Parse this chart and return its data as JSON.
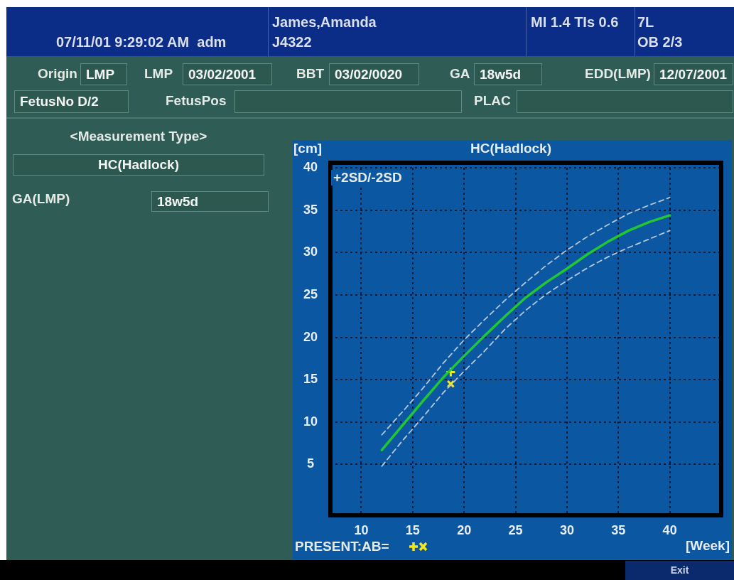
{
  "chart_data": {
    "type": "line",
    "title": "HC(Hadlock)",
    "xlabel": "[Week]",
    "ylabel": "[cm]",
    "annotations": [
      "07/11/01 9:29:02 AM  adm",
      "James,Amanda",
      "J4322",
      "MI 1.4 TIs 0.6",
      "7L",
      "OB 2/3",
      "Origin",
      "LMP",
      "LMP",
      "03/02/2001",
      "BBT",
      "03/02/0020",
      "GA",
      "18w5d",
      "EDD(LMP)",
      "12/07/2001",
      "FetusNo D/2",
      "FetusPos",
      "PLAC",
      "<Measurement Type>",
      "HC(Hadlock)",
      "GA(LMP)",
      "18w5d",
      "+2SD/-2SD",
      "PRESENT:AB=",
      "Exit"
    ],
    "xlim": [
      7,
      45
    ],
    "xticks": [
      10,
      15,
      20,
      25,
      30,
      35,
      40
    ],
    "ylim": [
      -1,
      40.6
    ],
    "yticks": [
      5,
      10,
      15,
      20,
      25,
      30,
      35,
      40
    ],
    "grid": true,
    "series": [
      {
        "color": "#22c832",
        "line_style": "solid",
        "marker": "none",
        "x": [
          12,
          14,
          16,
          18,
          20,
          22,
          24,
          26,
          28,
          30,
          32,
          34,
          36,
          38,
          40
        ],
        "values": [
          6.7,
          9.6,
          12.5,
          15.3,
          17.8,
          20.2,
          22.5,
          24.7,
          26.5,
          28.1,
          29.8,
          31.3,
          32.6,
          33.6,
          34.4
        ]
      },
      {
        "color": "#b4c8dc",
        "line_style": "dashed",
        "marker": "none",
        "x": [
          12,
          14,
          16,
          18,
          20,
          22,
          24,
          26,
          28,
          30,
          32,
          34,
          36,
          38,
          40
        ],
        "values": [
          8.5,
          11.2,
          14.0,
          17.0,
          19.7,
          22.1,
          24.4,
          26.5,
          28.5,
          30.3,
          31.9,
          33.3,
          34.6,
          35.6,
          36.5
        ]
      },
      {
        "color": "#b4c8dc",
        "line_style": "dashed",
        "marker": "none",
        "x": [
          12,
          14,
          16,
          18,
          20,
          22,
          24,
          26,
          28,
          30,
          32,
          34,
          36,
          38,
          40
        ],
        "values": [
          4.8,
          7.8,
          10.6,
          13.5,
          16.0,
          18.4,
          21.0,
          23.2,
          25.1,
          26.7,
          28.2,
          29.5,
          30.6,
          31.6,
          32.6
        ]
      },
      {
        "type": "scatter",
        "color": "#f5e71c",
        "marker": "cross",
        "x": [
          18.7
        ],
        "values": [
          15.9
        ]
      },
      {
        "type": "scatter",
        "color": "#f5e71c",
        "marker": "x",
        "x": [
          18.7
        ],
        "values": [
          14.5
        ]
      }
    ]
  }
}
